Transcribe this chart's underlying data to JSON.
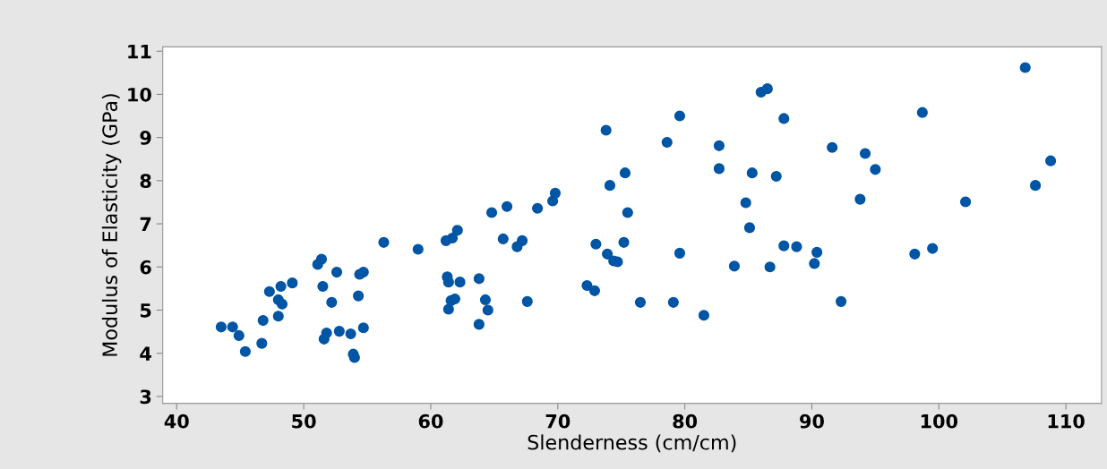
{
  "chart_data": {
    "type": "scatter",
    "xlabel": "Slenderness (cm/cm)",
    "ylabel": "Modulus of Elasticity (GPa)",
    "xlim": [
      38.9,
      112.8
    ],
    "ylim": [
      2.84,
      11.1
    ],
    "xticks": [
      40,
      50,
      60,
      70,
      80,
      90,
      100,
      110
    ],
    "yticks": [
      3,
      4,
      5,
      6,
      7,
      8,
      9,
      10,
      11
    ],
    "grid": false,
    "marker": "circle",
    "series": [
      {
        "color": "#0055a5",
        "x": [
          43.5,
          44.4,
          44.9,
          45.4,
          46.7,
          46.8,
          47.3,
          48.0,
          48.0,
          48.3,
          48.2,
          49.1,
          51.1,
          51.4,
          51.5,
          51.6,
          51.8,
          52.2,
          52.6,
          52.8,
          53.7,
          53.9,
          54.0,
          54.3,
          54.4,
          54.7,
          54.7,
          56.3,
          59.0,
          61.2,
          61.7,
          62.1,
          61.3,
          61.4,
          62.3,
          61.4,
          61.6,
          61.9,
          63.8,
          63.8,
          64.3,
          64.5,
          64.8,
          66.0,
          65.7,
          66.8,
          67.2,
          67.6,
          68.4,
          69.6,
          69.8,
          72.3,
          72.9,
          73.0,
          73.8,
          73.9,
          74.1,
          74.4,
          74.7,
          75.3,
          75.2,
          75.5,
          76.5,
          78.6,
          79.1,
          79.6,
          79.6,
          81.5,
          82.7,
          82.7,
          83.9,
          84.8,
          85.1,
          85.3,
          86.0,
          86.5,
          86.7,
          87.2,
          87.8,
          87.8,
          88.8,
          90.2,
          90.4,
          91.6,
          92.3,
          93.8,
          94.2,
          95.0,
          98.1,
          98.7,
          99.5,
          102.1,
          106.8,
          107.6,
          108.8
        ],
        "values": [
          4.61,
          4.61,
          4.41,
          4.04,
          4.23,
          4.76,
          5.43,
          4.86,
          5.24,
          5.14,
          5.55,
          5.63,
          6.06,
          6.18,
          5.55,
          4.33,
          4.47,
          5.18,
          5.88,
          4.51,
          4.45,
          3.98,
          3.9,
          5.33,
          5.83,
          5.88,
          4.59,
          6.57,
          6.41,
          6.61,
          6.67,
          6.85,
          5.77,
          5.65,
          5.65,
          5.02,
          5.22,
          5.26,
          5.73,
          4.67,
          5.24,
          5.0,
          7.26,
          7.4,
          6.65,
          6.47,
          6.61,
          5.2,
          7.36,
          7.53,
          7.71,
          5.57,
          5.45,
          6.53,
          9.17,
          6.3,
          7.89,
          6.14,
          6.12,
          8.18,
          6.57,
          7.26,
          5.18,
          8.89,
          5.18,
          6.32,
          9.5,
          4.88,
          8.81,
          8.28,
          6.02,
          7.49,
          6.91,
          8.18,
          10.05,
          10.13,
          6.0,
          8.1,
          9.44,
          6.49,
          6.47,
          6.08,
          6.34,
          8.77,
          5.2,
          7.57,
          8.63,
          8.26,
          6.3,
          9.58,
          6.43,
          7.51,
          10.62,
          7.89,
          8.46
        ]
      }
    ]
  }
}
